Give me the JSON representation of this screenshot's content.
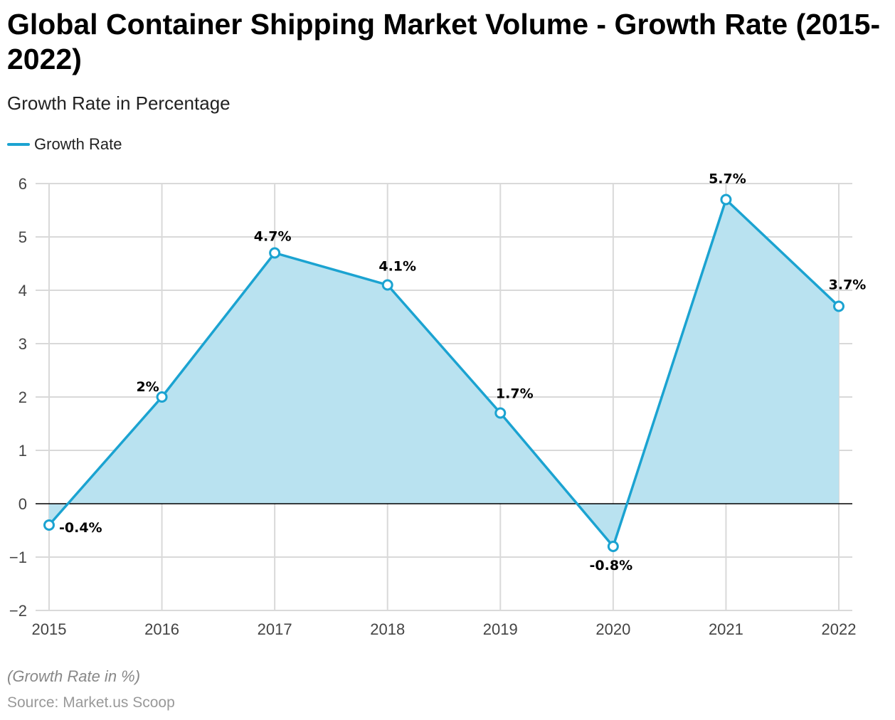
{
  "title": "Global Container Shipping Market Volume - Growth Rate (2015-2022)",
  "subtitle": "Growth Rate in Percentage",
  "note": "(Growth Rate in %)",
  "source": "Source: Market.us Scoop",
  "colors": {
    "line": "#1ba3d1",
    "fill": "#b9e2f0",
    "grid": "#d9d9d9",
    "zero": "#000000"
  },
  "chart_data": {
    "type": "area",
    "title": "Global Container Shipping Market Volume - Growth Rate (2015-2022)",
    "subtitle": "Growth Rate in Percentage",
    "categories": [
      "2015",
      "2016",
      "2017",
      "2018",
      "2019",
      "2020",
      "2021",
      "2022"
    ],
    "series": [
      {
        "name": "Growth Rate",
        "values": [
          -0.4,
          2,
          4.7,
          4.1,
          1.7,
          -0.8,
          5.7,
          3.7
        ]
      }
    ],
    "data_labels": [
      "-0.4%",
      "2%",
      "4.7%",
      "4.1%",
      "1.7%",
      "-0.8%",
      "5.7%",
      "3.7%"
    ],
    "ylim": [
      -2,
      6
    ],
    "yticks": [
      6,
      5,
      4,
      3,
      2,
      1,
      0,
      -1,
      -2
    ],
    "ytick_labels": [
      "6",
      "5",
      "4",
      "3",
      "2",
      "1",
      "0",
      "−1",
      "−2"
    ],
    "grid": true,
    "legend_position": "top-left"
  }
}
